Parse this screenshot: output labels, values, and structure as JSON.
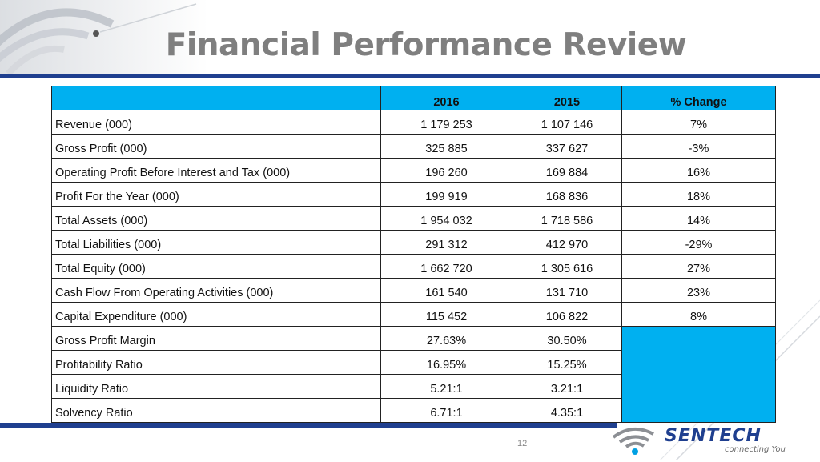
{
  "title": "Financial Performance Review",
  "table": {
    "headers": [
      "",
      "2016",
      "2015",
      "% Change"
    ],
    "rows": [
      {
        "label": "Revenue (000)",
        "v2016": "1 179 253",
        "v2015": "1 107 146",
        "change": "7%"
      },
      {
        "label": "Gross Profit (000)",
        "v2016": "325 885",
        "v2015": "337 627",
        "change": "-3%"
      },
      {
        "label": "Operating Profit Before Interest and Tax (000)",
        "v2016": "196 260",
        "v2015": "169 884",
        "change": "16%"
      },
      {
        "label": "Profit For the Year (000)",
        "v2016": "199 919",
        "v2015": "168 836",
        "change": "18%"
      },
      {
        "label": "Total Assets (000)",
        "v2016": "1 954 032",
        "v2015": "1 718 586",
        "change": "14%"
      },
      {
        "label": "Total Liabilities (000)",
        "v2016": "291 312",
        "v2015": "412 970",
        "change": "-29%"
      },
      {
        "label": "Total Equity (000)",
        "v2016": "1 662 720",
        "v2015": "1 305 616",
        "change": "27%"
      },
      {
        "label": "Cash Flow From Operating Activities (000)",
        "v2016": "161 540",
        "v2015": "131 710",
        "change": "23%"
      },
      {
        "label": "Capital Expenditure (000)",
        "v2016": "115 452",
        "v2015": "106 822",
        "change": "8%"
      }
    ],
    "ratio_rows": [
      {
        "label": "Gross Profit Margin",
        "v2016": "27.63%",
        "v2015": "30.50%"
      },
      {
        "label": "Profitability Ratio",
        "v2016": "16.95%",
        "v2015": "15.25%"
      },
      {
        "label": "Liquidity Ratio",
        "v2016": "5.21:1",
        "v2015": "3.21:1"
      },
      {
        "label": "Solvency Ratio",
        "v2016": "6.71:1",
        "v2015": "4.35:1"
      }
    ]
  },
  "page_number": "12",
  "logo": {
    "name": "SENTECH",
    "tagline": "connecting You"
  },
  "colors": {
    "header_fill": "#00b0f0",
    "band": "#1f3f8f",
    "title": "#7f7f7f"
  },
  "icons": [
    "wireless-signal-icon"
  ]
}
